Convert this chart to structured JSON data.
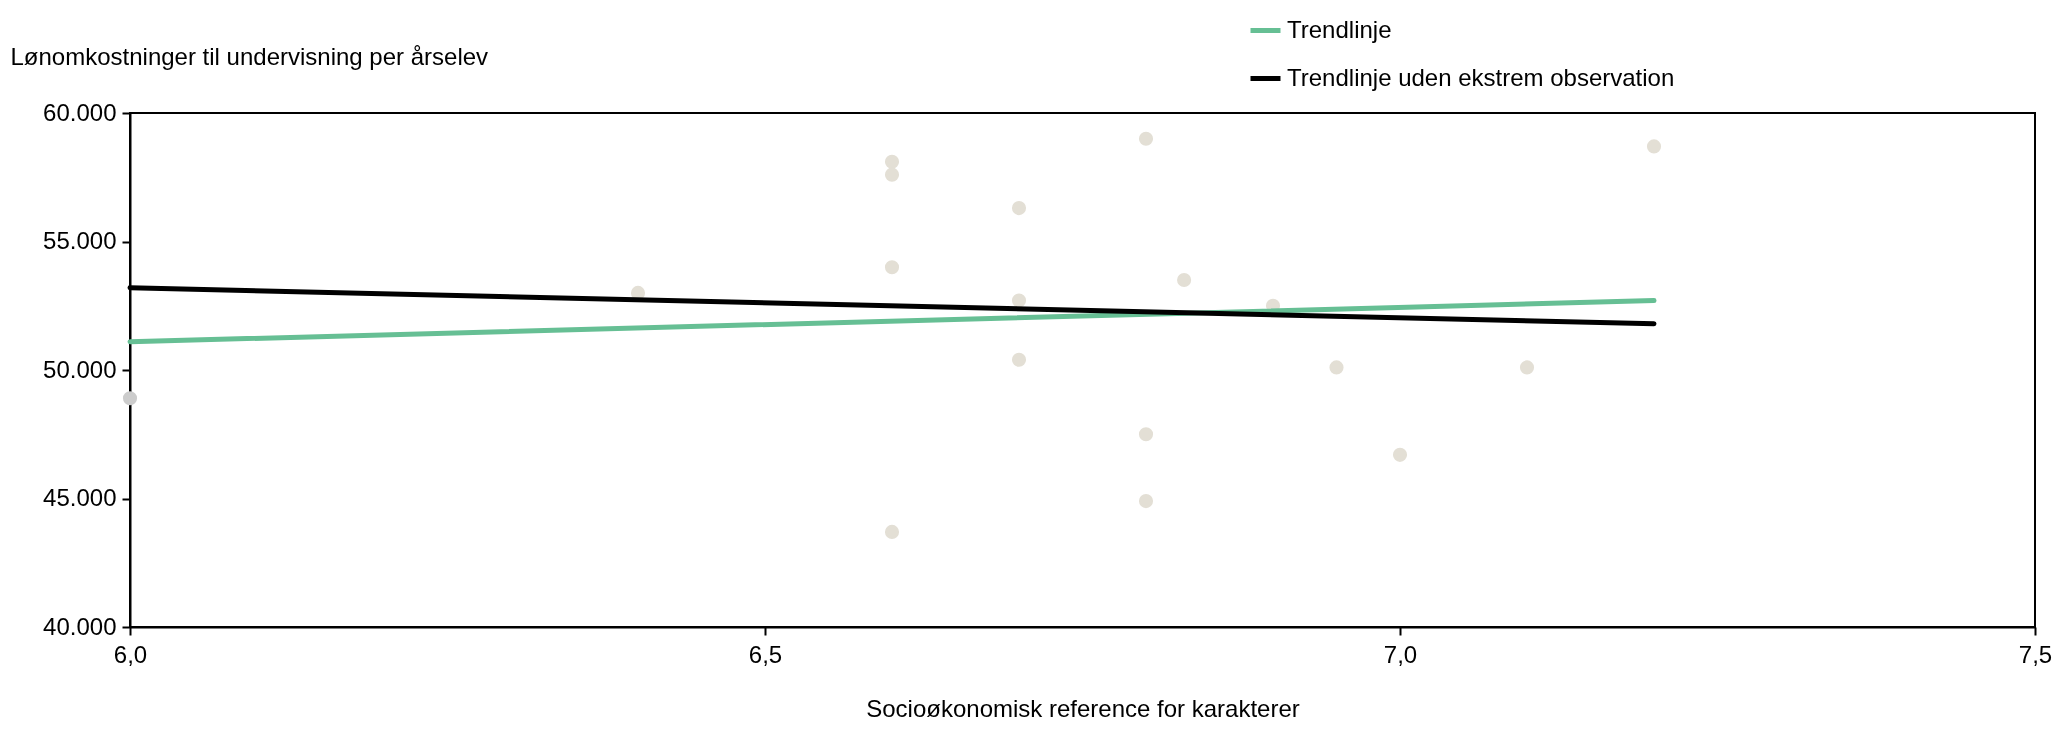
{
  "chart_data": {
    "type": "scatter",
    "xlabel": "Socioøkonomisk reference for karakterer",
    "ylabel": "Lønomkostninger til undervisning per årselev",
    "xlim": [
      6.0,
      7.5
    ],
    "ylim": [
      40000,
      60000
    ],
    "xticks": [
      {
        "value": 6.0,
        "label": "6,0"
      },
      {
        "value": 6.5,
        "label": "6,5"
      },
      {
        "value": 7.0,
        "label": "7,0"
      },
      {
        "value": 7.5,
        "label": "7,5"
      }
    ],
    "yticks": [
      {
        "value": 40000,
        "label": "40.000"
      },
      {
        "value": 45000,
        "label": "45.000"
      },
      {
        "value": 50000,
        "label": "50.000"
      },
      {
        "value": 55000,
        "label": "55.000"
      },
      {
        "value": 60000,
        "label": "60.000"
      }
    ],
    "grid": false,
    "legend": "top right",
    "series": [
      {
        "marker": "circle",
        "color": "#e3dfd5",
        "x": [
          6.4,
          6.6,
          6.6,
          6.6,
          6.6,
          6.7,
          6.7,
          6.7,
          6.8,
          6.8,
          6.8,
          6.83,
          6.9,
          6.95,
          7.0,
          7.1,
          7.2
        ],
        "values": [
          53000,
          58100,
          57600,
          54000,
          43700,
          56300,
          52700,
          50400,
          59000,
          47500,
          44900,
          53500,
          52500,
          50100,
          46700,
          50100,
          58700
        ]
      },
      {
        "marker": "circle",
        "color": "#cccccc",
        "x": [
          6.0
        ],
        "values": [
          48900
        ]
      },
      {
        "type": "line",
        "marker": "none",
        "name": "Trendlinje",
        "color": "#66bf94",
        "line_style": "solid",
        "x": [
          6.0,
          7.2
        ],
        "values": [
          51100,
          52700
        ]
      },
      {
        "type": "line",
        "marker": "none",
        "name": "Trendlinje uden ekstrem observation",
        "color": "#000000",
        "line_style": "solid",
        "x": [
          6.0,
          7.2
        ],
        "values": [
          53200,
          51800
        ]
      }
    ]
  }
}
